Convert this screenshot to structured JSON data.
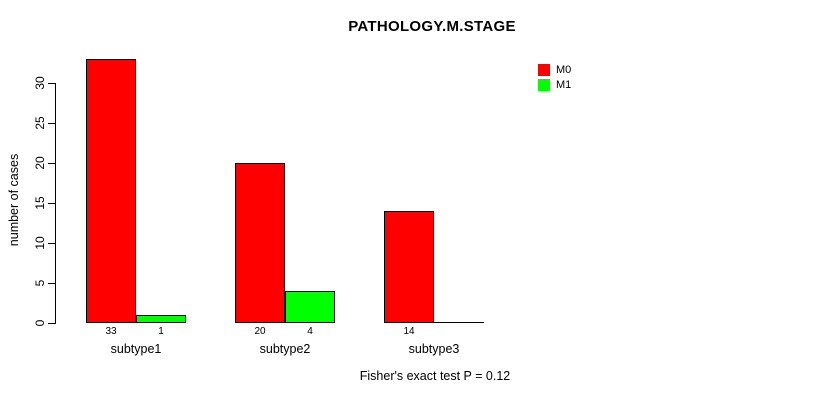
{
  "chart_data": {
    "type": "bar",
    "title": "PATHOLOGY.M.STAGE",
    "ylabel": "number of cases",
    "xlabel": "",
    "categories": [
      "subtype1",
      "subtype2",
      "subtype3"
    ],
    "series": [
      {
        "name": "M0",
        "color": "#FF0000",
        "values": [
          33,
          20,
          14
        ]
      },
      {
        "name": "M1",
        "color": "#00FF00",
        "values": [
          1,
          4,
          0
        ]
      }
    ],
    "value_labels": [
      [
        "33",
        "1"
      ],
      [
        "20",
        "4"
      ],
      [
        "14",
        ""
      ]
    ],
    "yticks": [
      0,
      5,
      10,
      15,
      20,
      25,
      30
    ],
    "ylim": [
      0,
      33
    ],
    "grid": false,
    "legend_position": "top-right",
    "legend_entries": [
      "M0",
      "M1"
    ],
    "bar_border_color": "#000000",
    "text_color": "#000000",
    "background_color": "#FFFFFF",
    "footnote": "Fisher's exact test P = 0.12"
  }
}
